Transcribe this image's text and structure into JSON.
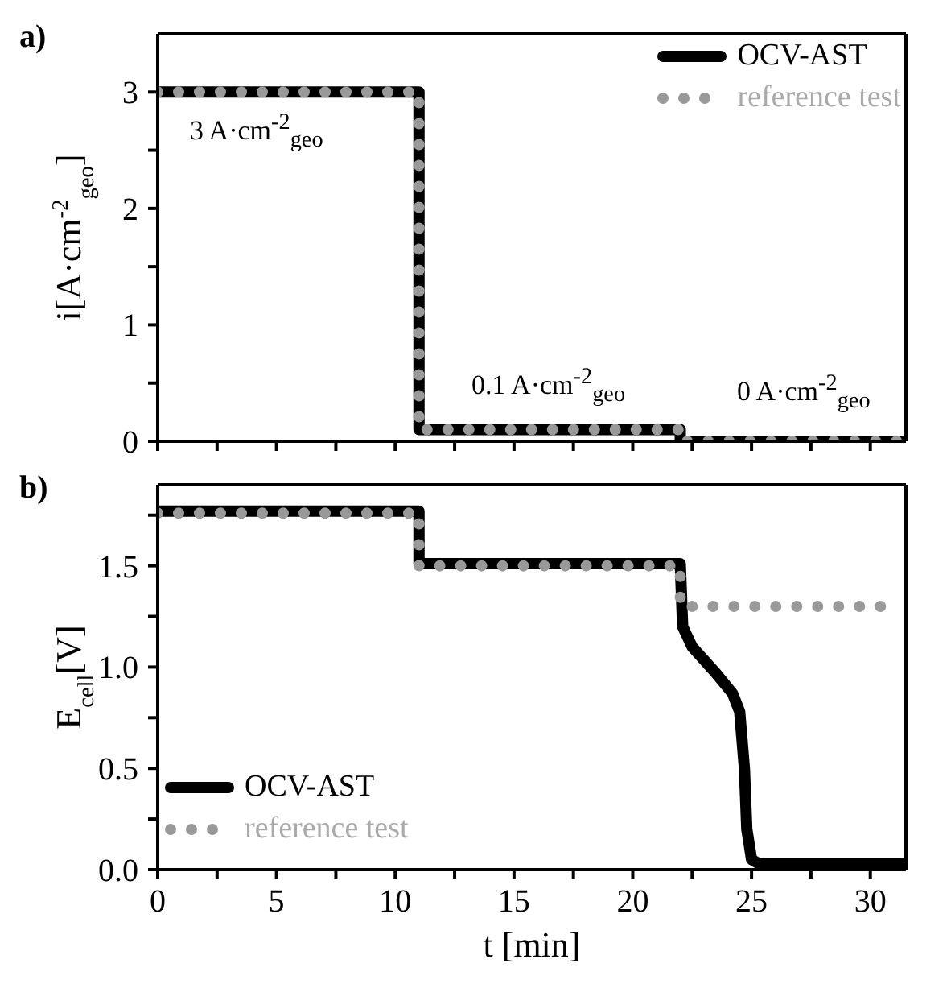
{
  "chart_data": [
    {
      "type": "line",
      "title": "a)",
      "ylabel": "i[A·cm$^{-2}$$_{geo}$]",
      "xlim": [
        0,
        31.5
      ],
      "xticks": [
        0,
        {
          "value": 2.5,
          "label": null
        },
        5,
        {
          "value": 7.5,
          "label": null
        },
        10,
        {
          "value": 12.5,
          "label": null
        },
        15,
        {
          "value": 17.5,
          "label": null
        },
        20,
        {
          "value": 22.5,
          "label": null
        },
        25,
        {
          "value": 27.5,
          "label": null
        },
        30
      ],
      "ylim": [
        0,
        3.5
      ],
      "yticks": [
        0,
        {
          "value": 0.5,
          "label": null
        },
        1,
        {
          "value": 1.5,
          "label": null
        },
        2,
        {
          "value": 2.5,
          "label": null
        },
        3
      ],
      "tick_labels": "y",
      "grid": false,
      "legend": "top right",
      "marker": "none",
      "annotations": [
        "3 A·cm$^{-2}$$_{geo}$",
        "0.1 A·cm$^{-2}$$_{geo}$",
        "0 A·cm$^{-2}$$_{geo}$"
      ],
      "series": [
        {
          "name": "OCV-AST",
          "color": "#000000",
          "line_style": "solid",
          "x": [
            0,
            11,
            11,
            22,
            22,
            31.5
          ],
          "values": [
            3,
            3,
            0.1,
            0.1,
            0,
            0
          ]
        },
        {
          "name": "reference test",
          "color": "#999999",
          "line_style": "dotted",
          "x": [
            0,
            11,
            11,
            22,
            22,
            31.5
          ],
          "values": [
            3,
            3,
            0.1,
            0.1,
            0,
            0
          ]
        }
      ]
    },
    {
      "type": "line",
      "title": "b)",
      "xlabel": "t [min]",
      "ylabel": "E$_{cell}$[V]",
      "xlim": [
        0,
        31.5
      ],
      "xticks": [
        0,
        {
          "value": 2.5,
          "label": null
        },
        5,
        {
          "value": 7.5,
          "label": null
        },
        10,
        {
          "value": 12.5,
          "label": null
        },
        15,
        {
          "value": 17.5,
          "label": null
        },
        20,
        {
          "value": 22.5,
          "label": null
        },
        25,
        {
          "value": 27.5,
          "label": null
        },
        30
      ],
      "ylim": [
        0,
        1.9
      ],
      "yticks": [
        {
          "value": 0,
          "label": "0.0"
        },
        {
          "value": 0.25,
          "label": null
        },
        0.5,
        {
          "value": 0.75,
          "label": null
        },
        {
          "value": 1,
          "label": "1.0"
        },
        {
          "value": 1.25,
          "label": null
        },
        1.5,
        {
          "value": 1.75,
          "label": null
        }
      ],
      "grid": false,
      "legend": "bottom left",
      "marker": "none",
      "series": [
        {
          "name": "OCV-AST",
          "color": "#000000",
          "line_style": "solid",
          "x": [
            0,
            11,
            11,
            22,
            22.1,
            22.5,
            23.5,
            24.2,
            24.5,
            24.7,
            24.8,
            25,
            25.3,
            31.5
          ],
          "values": [
            1.77,
            1.77,
            1.51,
            1.51,
            1.2,
            1.1,
            0.97,
            0.87,
            0.78,
            0.5,
            0.2,
            0.05,
            0.03,
            0.03
          ]
        },
        {
          "name": "reference test",
          "color": "#999999",
          "line_style": "dotted",
          "x": [
            0,
            11,
            11,
            22,
            22,
            31
          ],
          "values": [
            1.76,
            1.76,
            1.5,
            1.5,
            1.3,
            1.3
          ]
        }
      ]
    }
  ]
}
